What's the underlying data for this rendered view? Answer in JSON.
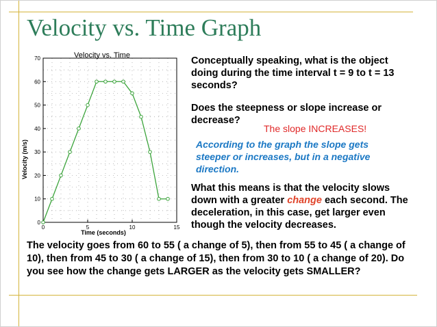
{
  "title": "Velocity vs. Time Graph",
  "question1": "Conceptually speaking, what is the object doing during the time interval t = 9 to t = 13 seconds?",
  "question2": "Does the steepness or slope increase or decrease?",
  "answer": "The slope INCREASES!",
  "clarification": "According to the graph the slope gets steeper or increases, but in a negative direction.",
  "explanation": {
    "before": "What this means is that the velocity slows down with a greater ",
    "emph": "change",
    "after": " each second. The deceleration, in this case, get larger even though the velocity decreases."
  },
  "bottom_text": "The velocity goes from 60 to 55 ( a change of 5), then from 55 to 45 ( a change of 10), then from 45 to 30 ( a change of 15), then from 30 to 10 ( a change of 20). Do you see how the change gets LARGER as the velocity gets SMALLER?",
  "colors": {
    "title": "#2e7d5a",
    "rule": "#d4b43a",
    "answer": "#e02828",
    "clarification": "#1b78c4",
    "series": "#3aa33a",
    "emphasis": "#e0442a"
  },
  "chart_data": {
    "type": "line",
    "title": "Velocity vs. Time",
    "xlabel": "Time (seconds)",
    "ylabel": "Velocity (m/s)",
    "xlim": [
      0,
      15
    ],
    "ylim": [
      0,
      70
    ],
    "xticks": [
      0,
      5,
      10,
      15
    ],
    "yticks": [
      0,
      10,
      20,
      30,
      40,
      50,
      60,
      70
    ],
    "grid": "dotted",
    "x": [
      0,
      1,
      2,
      3,
      4,
      5,
      6,
      7,
      8,
      9,
      10,
      11,
      12,
      13,
      14
    ],
    "y": [
      0,
      10,
      20,
      30,
      40,
      50,
      60,
      60,
      60,
      60,
      55,
      45,
      30,
      10,
      10
    ]
  }
}
